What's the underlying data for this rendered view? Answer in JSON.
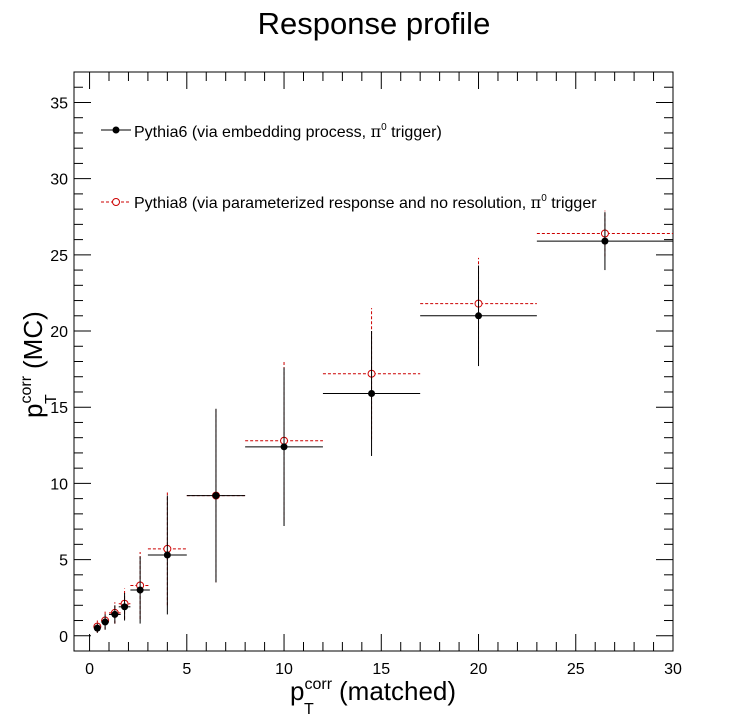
{
  "chart_data": {
    "type": "scatter",
    "title": "Response profile",
    "xlabel": {
      "base": "p",
      "sup": "corr",
      "sub": "T",
      "suffix": "(matched)"
    },
    "ylabel": {
      "base": "p",
      "sup": "corr",
      "sub": "T",
      "suffix": "(MC)"
    },
    "xlim": [
      -0.8,
      30
    ],
    "ylim": [
      -1,
      37
    ],
    "x_major_ticks": [
      0,
      5,
      10,
      15,
      20,
      25,
      30
    ],
    "y_major_ticks": [
      0,
      5,
      10,
      15,
      20,
      25,
      30,
      35
    ],
    "x_tick_labels": [
      "0",
      "5",
      "10",
      "15",
      "20",
      "25",
      "30"
    ],
    "y_tick_labels": [
      "0",
      "5",
      "10",
      "15",
      "20",
      "25",
      "30",
      "35"
    ],
    "grid": false,
    "legend_position": "top-left",
    "series": [
      {
        "name_prefix": "Pythia6 (via embedding process, ",
        "name_pi": "π",
        "name_pi_sup": "0",
        "name_suffix": " trigger)",
        "color": "#000000",
        "marker": "filled-circle",
        "line_style": "solid",
        "points": [
          {
            "x": 0.4,
            "xerr": 0.1,
            "y": 0.5,
            "yerr": 0.3
          },
          {
            "x": 0.8,
            "xerr": 0.2,
            "y": 0.9,
            "yerr": 0.5
          },
          {
            "x": 1.3,
            "xerr": 0.3,
            "y": 1.4,
            "yerr": 0.6
          },
          {
            "x": 1.8,
            "xerr": 0.3,
            "y": 1.9,
            "yerr": 0.9
          },
          {
            "x": 2.6,
            "xerr": 0.5,
            "y": 3.0,
            "yerr": 2.2
          },
          {
            "x": 4.0,
            "xerr": 1.0,
            "y": 5.3,
            "yerr": 3.9
          },
          {
            "x": 6.5,
            "xerr": 1.5,
            "y": 9.2,
            "yerr": 5.7
          },
          {
            "x": 10.0,
            "xerr": 2.0,
            "y": 12.4,
            "yerr": 5.2
          },
          {
            "x": 14.5,
            "xerr": 2.5,
            "y": 15.9,
            "yerr": 4.1
          },
          {
            "x": 20.0,
            "xerr": 3.0,
            "y": 21.0,
            "yerr": 3.3
          },
          {
            "x": 26.5,
            "xerr": 3.5,
            "y": 25.9,
            "yerr": 1.9
          }
        ]
      },
      {
        "name_prefix": "Pythia8 (via parameterized response and no resolution, ",
        "name_pi": "π",
        "name_pi_sup": "0",
        "name_suffix": " trigger",
        "color": "#cc0000",
        "marker": "open-circle",
        "line_style": "dashed",
        "points": [
          {
            "x": 0.4,
            "xerr": 0.1,
            "y": 0.6,
            "yerr": 0.4
          },
          {
            "x": 0.8,
            "xerr": 0.2,
            "y": 1.0,
            "yerr": 0.6
          },
          {
            "x": 1.3,
            "xerr": 0.3,
            "y": 1.5,
            "yerr": 0.7
          },
          {
            "x": 1.8,
            "xerr": 0.3,
            "y": 2.1,
            "yerr": 1.0
          },
          {
            "x": 2.6,
            "xerr": 0.5,
            "y": 3.3,
            "yerr": 2.2
          },
          {
            "x": 4.0,
            "xerr": 1.0,
            "y": 5.7,
            "yerr": 3.7
          },
          {
            "x": 6.5,
            "xerr": 1.5,
            "y": 9.2,
            "yerr": 5.7
          },
          {
            "x": 10.0,
            "xerr": 2.0,
            "y": 12.8,
            "yerr": 5.2
          },
          {
            "x": 14.5,
            "xerr": 2.5,
            "y": 17.2,
            "yerr": 4.3
          },
          {
            "x": 20.0,
            "xerr": 3.0,
            "y": 21.8,
            "yerr": 3.0
          },
          {
            "x": 26.5,
            "xerr": 3.5,
            "y": 26.4,
            "yerr": 1.5
          }
        ]
      }
    ]
  }
}
